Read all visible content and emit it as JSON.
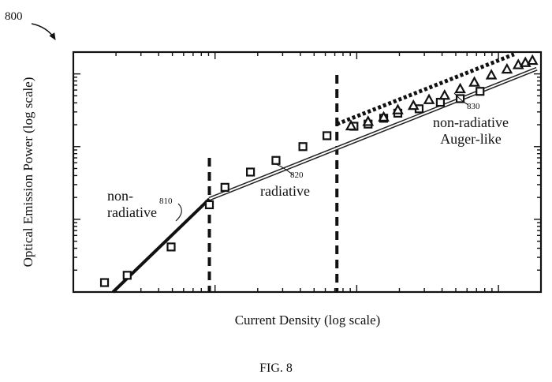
{
  "figure": {
    "ref_number": "800",
    "caption": "FIG. 8"
  },
  "chart_data": {
    "type": "scatter",
    "xlabel": "Current Density (log scale)",
    "ylabel": "Optical Emission Power (log scale)",
    "xscale": "log",
    "yscale": "log",
    "xlim": [
      0,
      3.3
    ],
    "ylim": [
      0,
      3.3
    ],
    "grid": false,
    "regions": [
      {
        "label": "non-\nradiative",
        "ref": "810",
        "fit_line": "solid"
      },
      {
        "label": "radiative",
        "ref": "820",
        "fit_line": "double"
      },
      {
        "label": "non-radiative\nAuger-like",
        "ref": "830",
        "fit_line": "dotted"
      }
    ],
    "region_boundaries_x": [
      0.96,
      1.86
    ],
    "series": [
      {
        "marker": "square",
        "x": [
          0.22,
          0.38,
          0.69,
          0.96,
          1.07,
          1.25,
          1.43,
          1.62,
          1.79,
          1.98,
          2.08,
          2.19,
          2.29,
          2.44,
          2.59,
          2.73,
          2.87
        ],
        "y": [
          0.13,
          0.23,
          0.62,
          1.2,
          1.44,
          1.65,
          1.81,
          2.0,
          2.15,
          2.28,
          2.31,
          2.39,
          2.46,
          2.52,
          2.61,
          2.66,
          2.76
        ]
      },
      {
        "marker": "triangle",
        "x": [
          1.96,
          2.08,
          2.19,
          2.29,
          2.4,
          2.51,
          2.62,
          2.73,
          2.83,
          2.95,
          3.06,
          3.14,
          3.19,
          3.24
        ],
        "y": [
          2.28,
          2.34,
          2.4,
          2.5,
          2.56,
          2.64,
          2.7,
          2.79,
          2.88,
          2.98,
          3.06,
          3.12,
          3.15,
          3.18
        ]
      }
    ],
    "fits": [
      {
        "style": "solid",
        "x": [
          0.28,
          0.96
        ],
        "y": [
          0.0,
          1.28
        ]
      },
      {
        "style": "double",
        "x": [
          0.96,
          3.27
        ],
        "y": [
          1.28,
          3.07
        ]
      },
      {
        "style": "dotted",
        "x": [
          1.86,
          3.11
        ],
        "y": [
          2.31,
          3.27
        ]
      }
    ]
  }
}
